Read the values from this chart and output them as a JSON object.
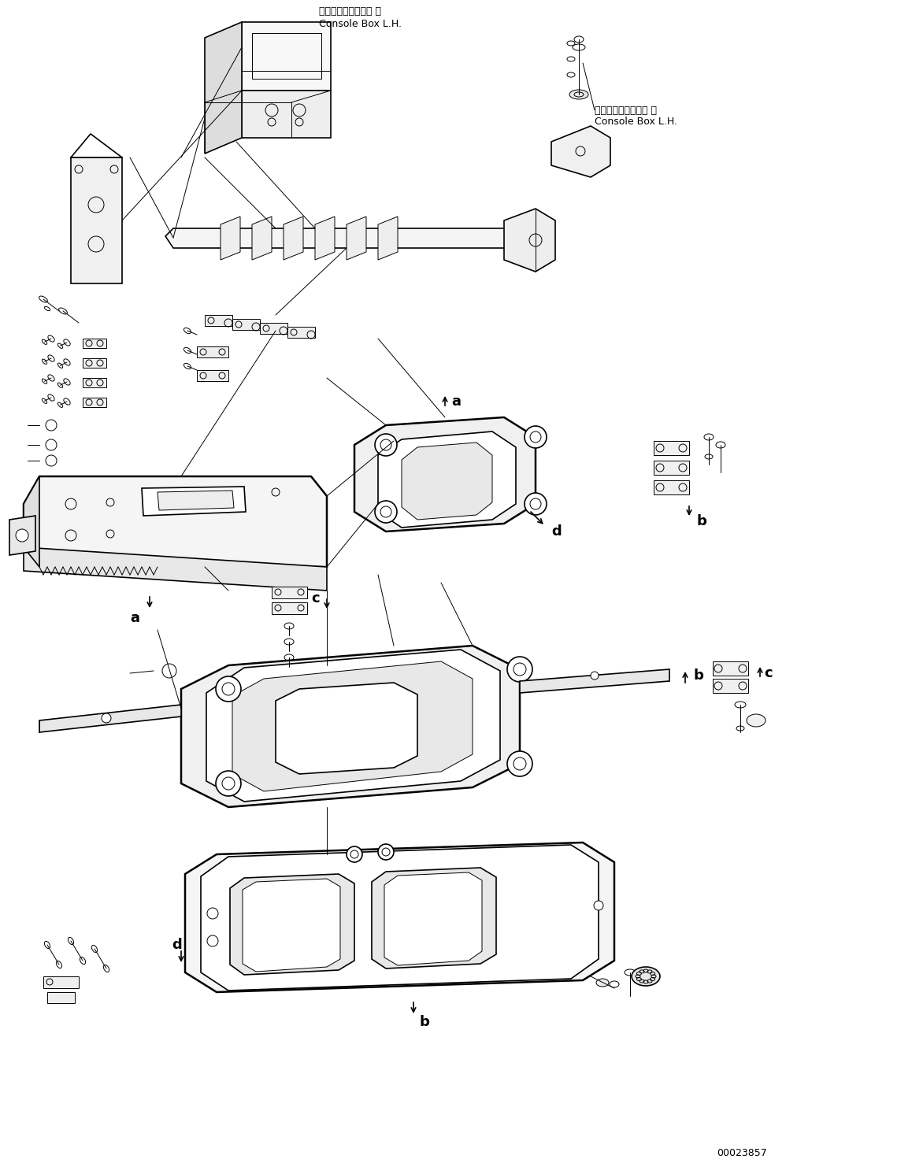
{
  "background_color": "#ffffff",
  "line_color": "#000000",
  "figure_width": 11.58,
  "figure_height": 14.91,
  "dpi": 100,
  "part_number": "00023857",
  "console_box_label_jp": "コンソールボックス 左",
  "console_box_label_en": "Console Box L.H.",
  "console_box_label_jp2": "コンソールボックス 左",
  "console_box_label_en2": "Console Box L.H.",
  "label_a": "a",
  "label_b": "b",
  "label_c": "c",
  "label_d": "d",
  "lw1": 0.7,
  "lw2": 1.2,
  "lw3": 1.8,
  "fs_label": 13,
  "fs_small": 8.5
}
